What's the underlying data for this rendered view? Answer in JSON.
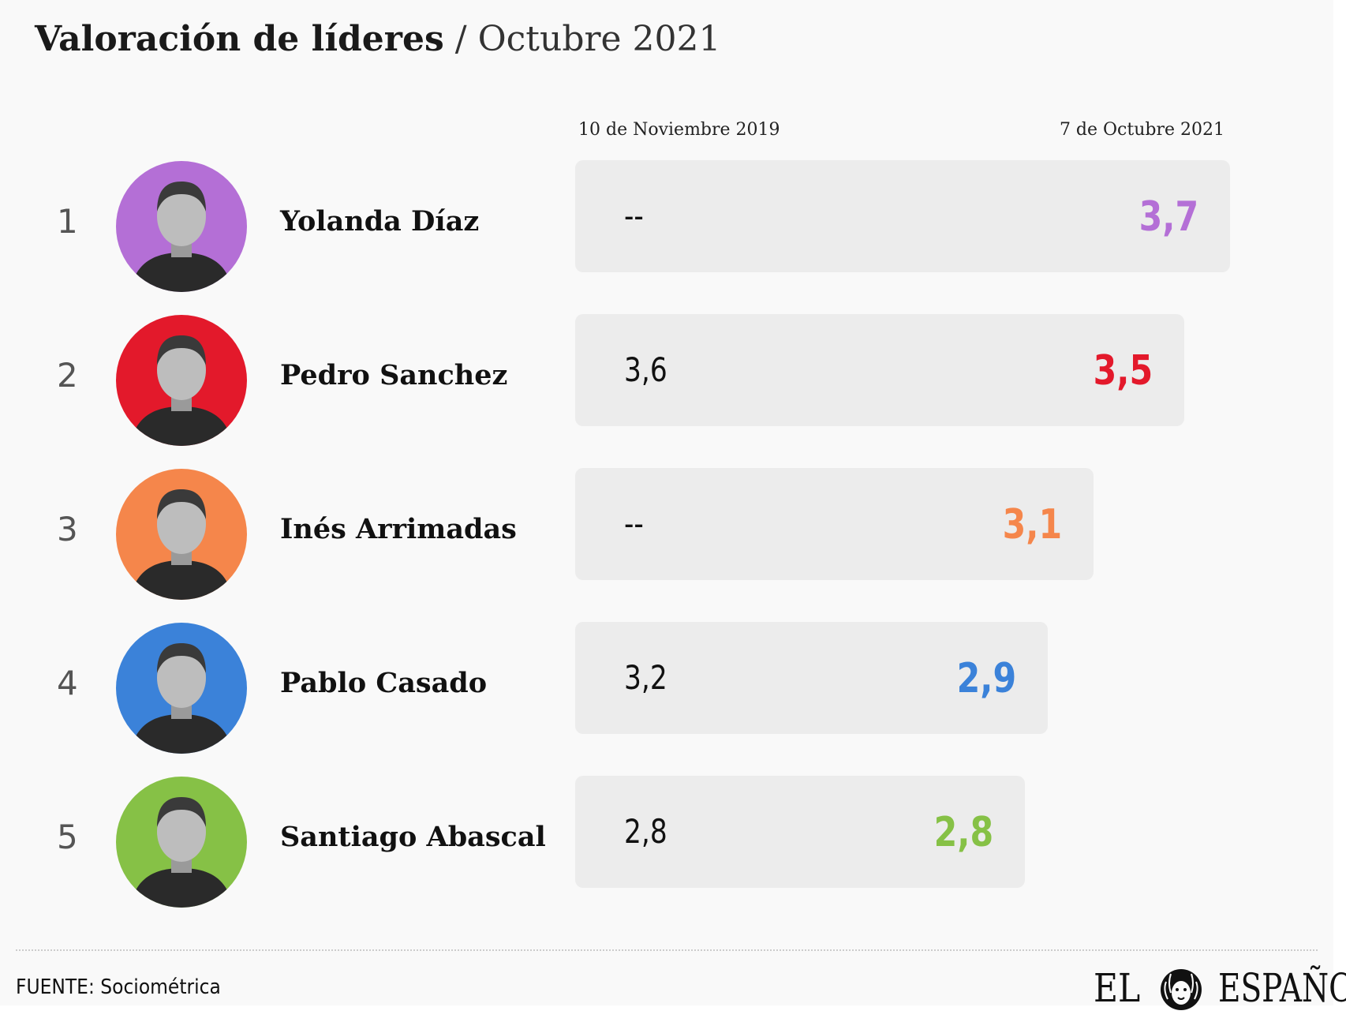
{
  "title": {
    "main": "Valoración de líderes",
    "separator": "/",
    "subtitle": "Octubre 2021"
  },
  "columns": {
    "previous": "10 de Noviembre 2019",
    "current": "7 de Octubre 2021"
  },
  "chart_data": {
    "type": "bar",
    "categories": [
      "Yolanda Díaz",
      "Pedro Sanchez",
      "Inés Arrimadas",
      "Pablo Casado",
      "Santiago Abascal"
    ],
    "ranks": [
      "1",
      "2",
      "3",
      "4",
      "5"
    ],
    "series": [
      {
        "name": "10 de Noviembre 2019",
        "labels": [
          "--",
          "3,6",
          "--",
          "3,2",
          "2,8"
        ],
        "values": [
          null,
          3.6,
          null,
          3.2,
          2.8
        ]
      },
      {
        "name": "7 de Octubre 2021",
        "labels": [
          "3,7",
          "3,5",
          "3,1",
          "2,9",
          "2,8"
        ],
        "values": [
          3.7,
          3.5,
          3.1,
          2.9,
          2.8
        ]
      }
    ],
    "colors": [
      "#b46fd6",
      "#e3192b",
      "#f5864b",
      "#3b82d9",
      "#86c146"
    ],
    "bar_scale_max": 3.7
  },
  "footer": {
    "source": "FUENTE: Sociométrica",
    "logo": {
      "word1": "EL",
      "word2": "ESPAÑOL",
      "emblem": "lion-icon"
    }
  }
}
